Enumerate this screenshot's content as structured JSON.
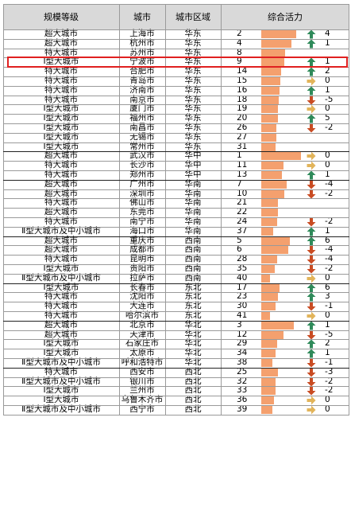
{
  "header": {
    "level": "规模等级",
    "city": "城市",
    "region": "城市区域",
    "vitality": "综合活力"
  },
  "colors": {
    "bar": "#f4a06e",
    "up": "#2f8a5a",
    "down": "#c94c23",
    "flat": "#e2b45a",
    "highlight": "#e02020"
  },
  "highlighted_row": 3,
  "rows": [
    {
      "level": "超大城市",
      "city": "上海市",
      "region": "华东",
      "rank": "2",
      "bar": 0.88,
      "trend": "up",
      "change": "4"
    },
    {
      "level": "超大城市",
      "city": "杭州市",
      "region": "华东",
      "rank": "4",
      "bar": 0.76,
      "trend": "up",
      "change": "1"
    },
    {
      "level": "特大城市",
      "city": "苏州市",
      "region": "华东",
      "rank": "8",
      "bar": 0.6,
      "trend": "",
      "change": ""
    },
    {
      "level": "Ⅰ型大城市",
      "city": "宁波市",
      "region": "华东",
      "rank": "9",
      "bar": 0.58,
      "trend": "up",
      "change": "1"
    },
    {
      "level": "特大城市",
      "city": "合肥市",
      "region": "华东",
      "rank": "14",
      "bar": 0.5,
      "trend": "up",
      "change": "2"
    },
    {
      "level": "特大城市",
      "city": "青岛市",
      "region": "华东",
      "rank": "15",
      "bar": 0.48,
      "trend": "flat",
      "change": "0"
    },
    {
      "level": "特大城市",
      "city": "济南市",
      "region": "华东",
      "rank": "16",
      "bar": 0.46,
      "trend": "up",
      "change": "1"
    },
    {
      "level": "特大城市",
      "city": "南京市",
      "region": "华东",
      "rank": "18",
      "bar": 0.43,
      "trend": "down",
      "change": "-5"
    },
    {
      "level": "Ⅰ型大城市",
      "city": "厦门市",
      "region": "华东",
      "rank": "19",
      "bar": 0.42,
      "trend": "flat",
      "change": "0"
    },
    {
      "level": "Ⅰ型大城市",
      "city": "福州市",
      "region": "华东",
      "rank": "20",
      "bar": 0.41,
      "trend": "up",
      "change": "5"
    },
    {
      "level": "Ⅰ型大城市",
      "city": "南昌市",
      "region": "华东",
      "rank": "26",
      "bar": 0.38,
      "trend": "down",
      "change": "-2"
    },
    {
      "level": "Ⅰ型大城市",
      "city": "无锡市",
      "region": "华东",
      "rank": "27",
      "bar": 0.37,
      "trend": "",
      "change": ""
    },
    {
      "level": "Ⅰ型大城市",
      "city": "常州市",
      "region": "华东",
      "rank": "31",
      "bar": 0.35,
      "trend": "",
      "change": ""
    },
    {
      "level": "超大城市",
      "city": "武汉市",
      "region": "华中",
      "rank": "1",
      "bar": 1.0,
      "trend": "flat",
      "change": "0"
    },
    {
      "level": "特大城市",
      "city": "长沙市",
      "region": "华中",
      "rank": "11",
      "bar": 0.56,
      "trend": "flat",
      "change": "0"
    },
    {
      "level": "特大城市",
      "city": "郑州市",
      "region": "华中",
      "rank": "13",
      "bar": 0.52,
      "trend": "up",
      "change": "1"
    },
    {
      "level": "超大城市",
      "city": "广州市",
      "region": "华南",
      "rank": "7",
      "bar": 0.64,
      "trend": "down",
      "change": "-4"
    },
    {
      "level": "超大城市",
      "city": "深圳市",
      "region": "华南",
      "rank": "10",
      "bar": 0.58,
      "trend": "down",
      "change": "-2"
    },
    {
      "level": "特大城市",
      "city": "佛山市",
      "region": "华南",
      "rank": "21",
      "bar": 0.42,
      "trend": "",
      "change": ""
    },
    {
      "level": "超大城市",
      "city": "东莞市",
      "region": "华南",
      "rank": "22",
      "bar": 0.41,
      "trend": "",
      "change": ""
    },
    {
      "level": "特大城市",
      "city": "南宁市",
      "region": "华南",
      "rank": "24",
      "bar": 0.4,
      "trend": "down",
      "change": "-2"
    },
    {
      "level": "Ⅱ型大城市及中小城市",
      "city": "海口市",
      "region": "华南",
      "rank": "37",
      "bar": 0.3,
      "trend": "up",
      "change": "1"
    },
    {
      "level": "超大城市",
      "city": "重庆市",
      "region": "西南",
      "rank": "5",
      "bar": 0.72,
      "trend": "up",
      "change": "6"
    },
    {
      "level": "超大城市",
      "city": "成都市",
      "region": "西南",
      "rank": "6",
      "bar": 0.68,
      "trend": "down",
      "change": "-4"
    },
    {
      "level": "特大城市",
      "city": "昆明市",
      "region": "西南",
      "rank": "28",
      "bar": 0.4,
      "trend": "down",
      "change": "-4"
    },
    {
      "level": "Ⅰ型大城市",
      "city": "贵阳市",
      "region": "西南",
      "rank": "35",
      "bar": 0.34,
      "trend": "down",
      "change": "-2"
    },
    {
      "level": "Ⅱ型大城市及中小城市",
      "city": "拉萨市",
      "region": "西南",
      "rank": "40",
      "bar": 0.22,
      "trend": "flat",
      "change": "0"
    },
    {
      "level": "Ⅰ型大城市",
      "city": "长春市",
      "region": "东北",
      "rank": "17",
      "bar": 0.46,
      "trend": "up",
      "change": "6"
    },
    {
      "level": "特大城市",
      "city": "沈阳市",
      "region": "东北",
      "rank": "23",
      "bar": 0.42,
      "trend": "up",
      "change": "3"
    },
    {
      "level": "特大城市",
      "city": "大连市",
      "region": "东北",
      "rank": "30",
      "bar": 0.36,
      "trend": "down",
      "change": "-1"
    },
    {
      "level": "特大城市",
      "city": "哈尔滨市",
      "region": "东北",
      "rank": "41",
      "bar": 0.22,
      "trend": "flat",
      "change": "0"
    },
    {
      "level": "超大城市",
      "city": "北京市",
      "region": "华北",
      "rank": "3",
      "bar": 0.82,
      "trend": "up",
      "change": "1"
    },
    {
      "level": "超大城市",
      "city": "天津市",
      "region": "华北",
      "rank": "12",
      "bar": 0.56,
      "trend": "down",
      "change": "-5"
    },
    {
      "level": "Ⅰ型大城市",
      "city": "石家庄市",
      "region": "华北",
      "rank": "29",
      "bar": 0.4,
      "trend": "up",
      "change": "2"
    },
    {
      "level": "Ⅰ型大城市",
      "city": "太原市",
      "region": "华北",
      "rank": "34",
      "bar": 0.36,
      "trend": "up",
      "change": "1"
    },
    {
      "level": "Ⅱ型大城市及中小城市",
      "city": "呼和浩特市",
      "region": "华北",
      "rank": "38",
      "bar": 0.28,
      "trend": "down",
      "change": "-1"
    },
    {
      "level": "特大城市",
      "city": "西安市",
      "region": "西北",
      "rank": "25",
      "bar": 0.42,
      "trend": "down",
      "change": "-3"
    },
    {
      "level": "Ⅱ型大城市及中小城市",
      "city": "银川市",
      "region": "西北",
      "rank": "32",
      "bar": 0.36,
      "trend": "down",
      "change": "-2"
    },
    {
      "level": "Ⅰ型大城市",
      "city": "兰州市",
      "region": "西北",
      "rank": "33",
      "bar": 0.35,
      "trend": "down",
      "change": "-2"
    },
    {
      "level": "Ⅰ型大城市",
      "city": "乌鲁木齐市",
      "region": "西北",
      "rank": "36",
      "bar": 0.32,
      "trend": "flat",
      "change": "0"
    },
    {
      "level": "Ⅱ型大城市及中小城市",
      "city": "西宁市",
      "region": "西北",
      "rank": "39",
      "bar": 0.28,
      "trend": "flat",
      "change": "0"
    }
  ]
}
